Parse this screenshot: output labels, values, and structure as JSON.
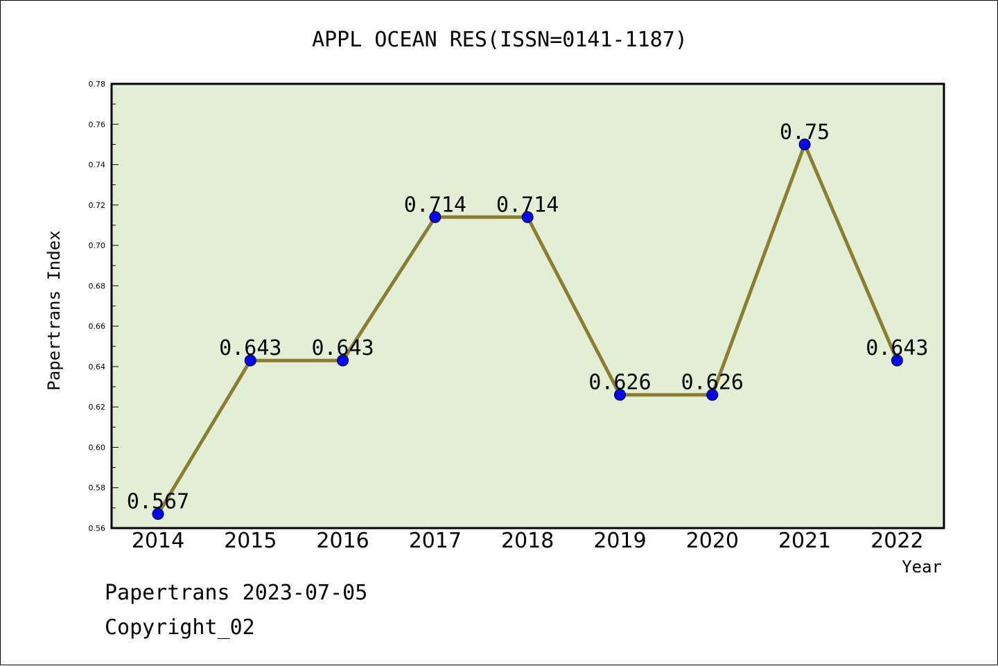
{
  "chart_data": {
    "type": "line",
    "title": "APPL OCEAN RES(ISSN=0141-1187)",
    "xlabel": "Year",
    "ylabel": "Papertrans Index",
    "categories": [
      "2014",
      "2015",
      "2016",
      "2017",
      "2018",
      "2019",
      "2020",
      "2021",
      "2022"
    ],
    "series": [
      {
        "values": [
          0.567,
          0.643,
          0.643,
          0.714,
          0.714,
          0.626,
          0.626,
          0.75,
          0.643
        ],
        "labels": [
          "0.567",
          "0.643",
          "0.643",
          "0.714",
          "0.714",
          "0.626",
          "0.626",
          "0.75",
          "0.643"
        ]
      }
    ],
    "ylim": [
      0.56,
      0.78
    ],
    "yticks": [
      "0.56",
      "0.58",
      "0.60",
      "0.62",
      "0.64",
      "0.66",
      "0.68",
      "0.70",
      "0.72",
      "0.74",
      "0.76",
      "0.78"
    ],
    "grid": false,
    "colors": {
      "plot_background": "#e2efd5",
      "line": "#8b7d32",
      "marker": "#0000ff"
    }
  },
  "footer": {
    "line1": "Papertrans 2023-07-05",
    "line2": "Copyright_02"
  }
}
